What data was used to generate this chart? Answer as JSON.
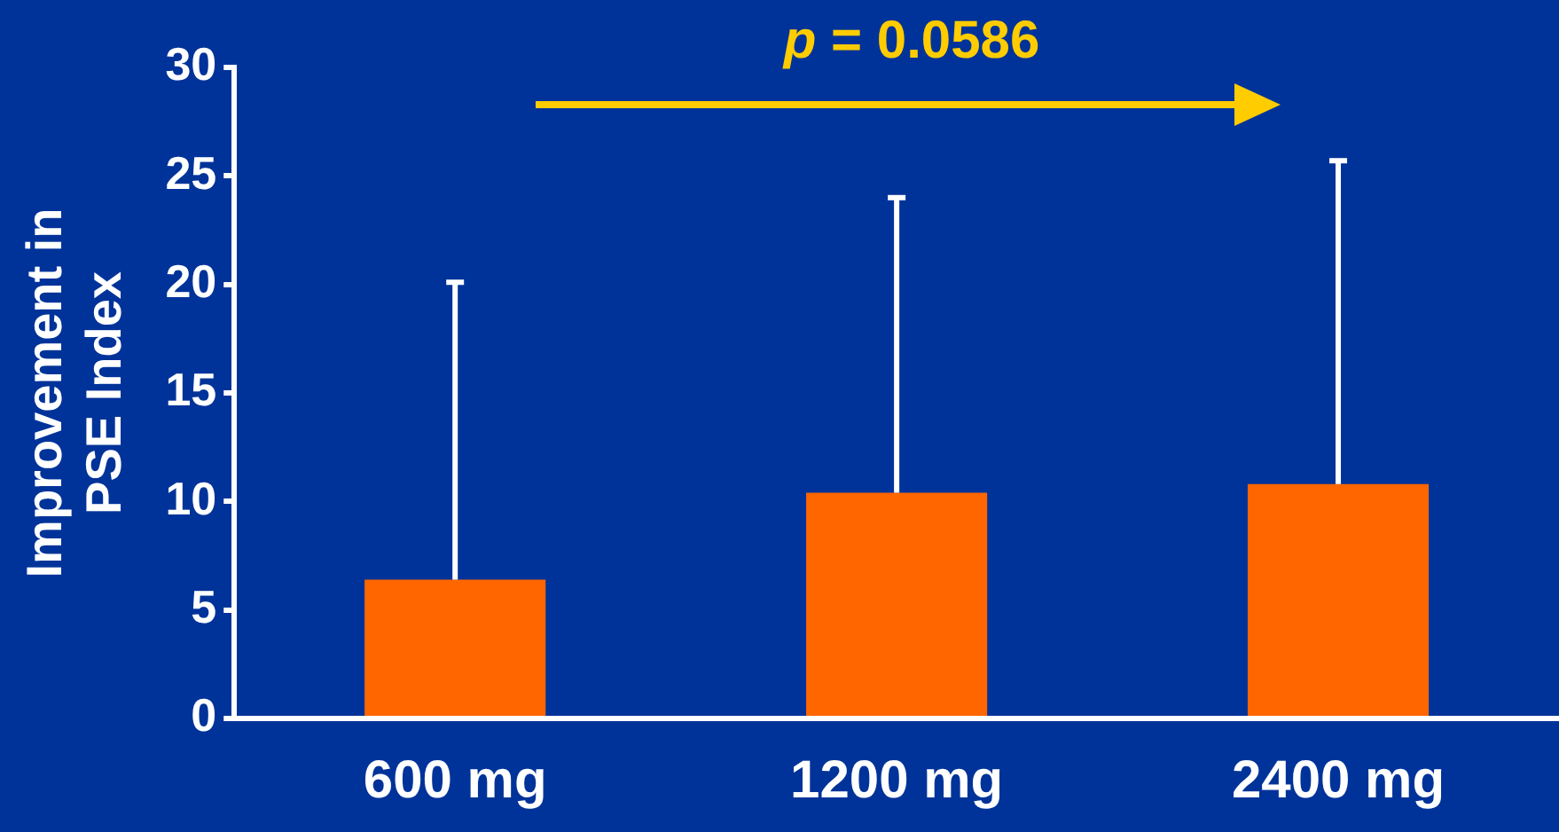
{
  "chart_data": {
    "type": "bar",
    "ylabel": "Improvement in PSE Index",
    "categories": [
      "600 mg",
      "1200 mg",
      "2400 mg"
    ],
    "values": [
      6.4,
      10.4,
      10.8
    ],
    "errors": [
      [
        6.4,
        20.1
      ],
      [
        10.4,
        24.0
      ],
      [
        10.8,
        25.7
      ]
    ],
    "color": "#ff6600",
    "ylim": [
      0,
      30
    ],
    "yticks": [
      0,
      5,
      10,
      15,
      20,
      25,
      30
    ],
    "grid": false,
    "legend": false,
    "annotations": [
      "p = 0.0586"
    ]
  }
}
